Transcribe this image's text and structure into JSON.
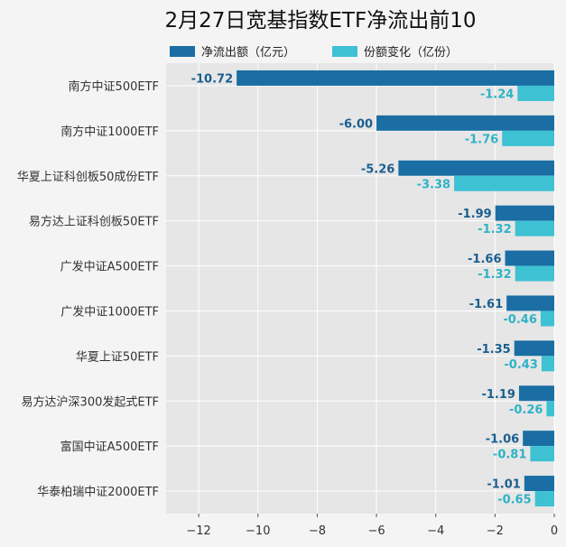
{
  "chart_data": {
    "type": "bar",
    "orientation": "horizontal",
    "title": "2月27日宽基指数ETF净流出前10",
    "categories": [
      "南方中证500ETF",
      "南方中证1000ETF",
      "华夏上证科创板50成份ETF",
      "易方达上证科创板50ETF",
      "广发中证A500ETF",
      "广发中证1000ETF",
      "华夏上证50ETF",
      "易方达沪深300发起式ETF",
      "富国中证A500ETF",
      "华泰柏瑞中证2000ETF"
    ],
    "series": [
      {
        "name": "净流出额（亿元）",
        "color": "#1a6ea3",
        "values": [
          -10.72,
          -6.0,
          -5.26,
          -1.99,
          -1.66,
          -1.61,
          -1.35,
          -1.19,
          -1.06,
          -1.01
        ],
        "labels": [
          "-10.72",
          "-6.00",
          "-5.26",
          "-1.99",
          "-1.66",
          "-1.61",
          "-1.35",
          "-1.19",
          "-1.06",
          "-1.01"
        ]
      },
      {
        "name": "份额变化（亿份）",
        "color": "#3ec1d3",
        "values": [
          -1.24,
          -1.76,
          -3.38,
          -1.32,
          -1.32,
          -0.46,
          -0.43,
          -0.26,
          -0.81,
          -0.65
        ],
        "labels": [
          "-1.24",
          "-1.76",
          "-3.38",
          "-1.32",
          "-1.32",
          "-0.46",
          "-0.43",
          "-0.26",
          "-0.81",
          "-0.65"
        ]
      }
    ],
    "xlim": [
      -13.1,
      0
    ],
    "xticks": [
      -12,
      -10,
      -8,
      -6,
      -4,
      -2,
      0
    ],
    "xtick_labels": [
      "−12",
      "−10",
      "−8",
      "−6",
      "−4",
      "−2",
      "0"
    ],
    "grid": true,
    "legend_position": "top"
  }
}
